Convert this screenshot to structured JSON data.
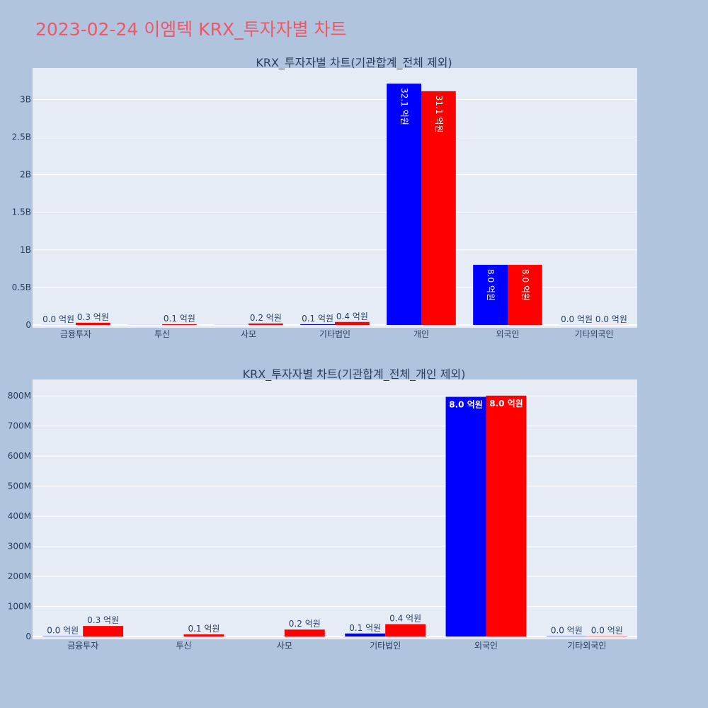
{
  "title": "2023-02-24 이엠텍 KRX_투자자별 차트",
  "colors": {
    "background": "#b0c4de",
    "plot_bg": "#e5ecf6",
    "title": "#ef5767",
    "series_a": "#0000ff",
    "series_b": "#ff0000"
  },
  "chart_data": [
    {
      "type": "bar",
      "title": "KRX_투자자별 차트(기관합계_전체 제외)",
      "categories": [
        "금융투자",
        "투신",
        "사모",
        "기타법인",
        "개인",
        "외국인",
        "기타외국인"
      ],
      "ylim": [
        0,
        3400000000
      ],
      "yticks": [
        0,
        500000000,
        1000000000,
        1500000000,
        2000000000,
        2500000000,
        3000000000
      ],
      "ytick_labels": [
        "0",
        "0.5B",
        "1B",
        "1.5B",
        "2B",
        "2.5B",
        "3B"
      ],
      "grid": true,
      "series": [
        {
          "values": [
            1000000,
            1000000,
            1000000,
            10000000,
            3210000000,
            800000000,
            1000000
          ],
          "labels": [
            "0.0 억원",
            "",
            "",
            "0.1 억원",
            "32.1 억원",
            "8.0 억원",
            "0.0 억원"
          ]
        },
        {
          "values": [
            30000000,
            10000000,
            20000000,
            40000000,
            3110000000,
            800000000,
            1000000
          ],
          "labels": [
            "0.3 억원",
            "0.1 억원",
            "0.2 억원",
            "0.4 억원",
            "31.1 억원",
            "8.0 억원",
            "0.0 억원"
          ]
        }
      ]
    },
    {
      "type": "bar",
      "title": "KRX_투자자별 차트(기관합계_전체_개인 제외)",
      "categories": [
        "금융투자",
        "투신",
        "사모",
        "기타법인",
        "외국인",
        "기타외국인"
      ],
      "ylim": [
        0,
        850000000
      ],
      "yticks": [
        0,
        100000000,
        200000000,
        300000000,
        400000000,
        500000000,
        600000000,
        700000000,
        800000000
      ],
      "ytick_labels": [
        "0",
        "100M",
        "200M",
        "300M",
        "400M",
        "500M",
        "600M",
        "700M",
        "800M"
      ],
      "grid": true,
      "series": [
        {
          "values": [
            1000000,
            0,
            0,
            10000000,
            797000000,
            1000000
          ],
          "labels": [
            "0.0 억원",
            "",
            "",
            "0.1 억원",
            "8.0 억원",
            "0.0 억원"
          ]
        },
        {
          "values": [
            35000000,
            7000000,
            23000000,
            41000000,
            801000000,
            1000000
          ],
          "labels": [
            "0.3 억원",
            "0.1 억원",
            "0.2 억원",
            "0.4 억원",
            "8.0 억원",
            "0.0 억원"
          ]
        }
      ]
    }
  ]
}
